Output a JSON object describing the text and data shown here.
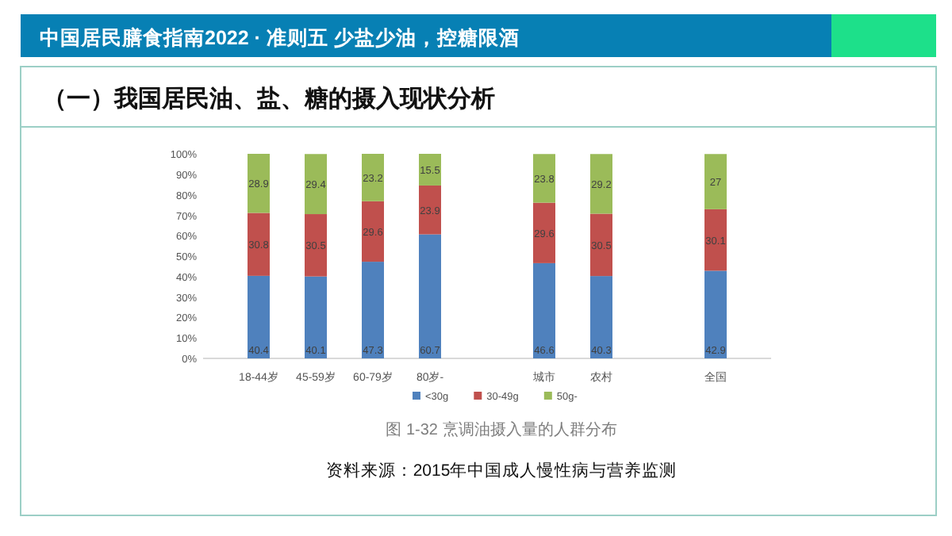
{
  "chart_data": {
    "type": "bar",
    "stacked": true,
    "title": "中国居民膳食指南2022 · 准则五  少盐少油，控糖限酒",
    "subtitle": "（一）我国居民油、盐、糖的摄入现状分析",
    "categories": [
      "18-44岁",
      "45-59岁",
      "60-79岁",
      "80岁-",
      null,
      "城市",
      "农村",
      null,
      "全国"
    ],
    "series": [
      {
        "name": "<30g",
        "color": "#4f81bd",
        "values": [
          40.4,
          40.1,
          47.3,
          60.7,
          null,
          46.6,
          40.3,
          null,
          42.9
        ]
      },
      {
        "name": "30-49g",
        "color": "#c0504d",
        "values": [
          30.8,
          30.5,
          29.6,
          23.9,
          null,
          29.6,
          30.5,
          null,
          30.1
        ]
      },
      {
        "name": "50g-",
        "color": "#9bbb59",
        "values": [
          28.9,
          29.4,
          23.2,
          15.5,
          null,
          23.8,
          29.2,
          null,
          27
        ]
      }
    ],
    "ylim": [
      0,
      100.1
    ],
    "yticks": [
      {
        "value": 0,
        "label": "0%"
      },
      {
        "value": 10,
        "label": "10%"
      },
      {
        "value": 20,
        "label": "20%"
      },
      {
        "value": 30,
        "label": "30%"
      },
      {
        "value": 40,
        "label": "40%"
      },
      {
        "value": 50,
        "label": "50%"
      },
      {
        "value": 60,
        "label": "60%"
      },
      {
        "value": 70,
        "label": "70%"
      },
      {
        "value": 80,
        "label": "80%"
      },
      {
        "value": 90,
        "label": "90%"
      },
      {
        "value": 100,
        "label": "100%"
      }
    ],
    "data_labels": true,
    "legend": "bottom",
    "grid": false,
    "annotations": [
      "图 1-32 烹调油摄入量的人群分布",
      "资料来源：2015年中国成人慢性病与营养监测"
    ]
  }
}
